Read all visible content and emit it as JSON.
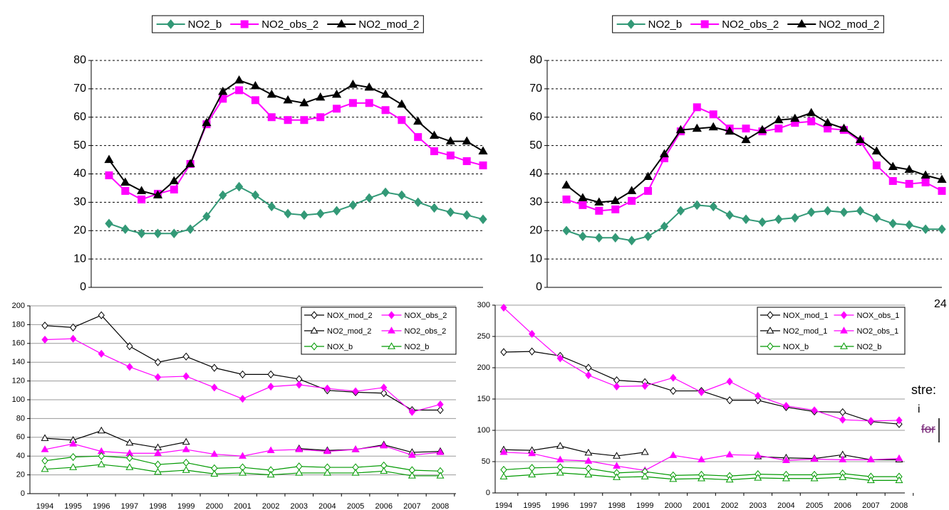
{
  "chart_data": [
    {
      "type": "line",
      "legend": "top",
      "grid": true,
      "grid_style": "dashed",
      "ylim": [
        0,
        80
      ],
      "yticks": [
        0,
        10,
        20,
        30,
        40,
        50,
        60,
        70,
        80
      ],
      "series": [
        {
          "name": "NO2_b",
          "color": "#339977",
          "marker": "diamond",
          "marker_fill": "filled",
          "values": [
            22.5,
            20.5,
            19,
            19,
            19,
            20.5,
            25,
            32.5,
            35.5,
            32.5,
            28.5,
            26,
            25.5,
            26,
            27,
            29,
            31.5,
            33.5,
            32.5,
            30,
            28,
            26.5,
            25.5,
            24
          ]
        },
        {
          "name": "NO2_obs_2",
          "color": "#ff00ff",
          "marker": "square",
          "marker_fill": "filled",
          "values": [
            39.5,
            34,
            31,
            33,
            34.5,
            43.5,
            57.5,
            66.5,
            69.5,
            66,
            60,
            59,
            59,
            60,
            63,
            65,
            65,
            62.5,
            59,
            53,
            48,
            46.5,
            44.5,
            43
          ]
        },
        {
          "name": "NO2_mod_2",
          "color": "#000000",
          "marker": "triangle",
          "marker_fill": "filled",
          "values": [
            45,
            37,
            34,
            32.5,
            37.5,
            43.5,
            58,
            69,
            73,
            71,
            68,
            66,
            65,
            67,
            68,
            71.5,
            70.5,
            68,
            64.5,
            58.5,
            53.5,
            51.5,
            51.5,
            48
          ]
        }
      ]
    },
    {
      "type": "line",
      "legend": "top",
      "grid": true,
      "grid_style": "dashed",
      "ylim": [
        0,
        80
      ],
      "yticks": [
        0,
        10,
        20,
        30,
        40,
        50,
        60,
        70,
        80
      ],
      "series": [
        {
          "name": "NO2_b",
          "color": "#339977",
          "marker": "diamond",
          "marker_fill": "filled",
          "values": [
            20,
            18,
            17.5,
            17.5,
            16.5,
            18,
            21.5,
            27,
            29,
            28.5,
            25.5,
            24,
            23,
            24,
            24.5,
            26.5,
            27,
            26.5,
            27,
            24.5,
            22.5,
            22,
            20.5,
            20.5
          ]
        },
        {
          "name": "NO2_obs_2",
          "color": "#ff00ff",
          "marker": "square",
          "marker_fill": "filled",
          "values": [
            31,
            29,
            27,
            27.5,
            30.5,
            34,
            45.5,
            55,
            63.5,
            61,
            56,
            56,
            55,
            56,
            58,
            58.5,
            56,
            55.5,
            51.5,
            43,
            37.5,
            36.5,
            37,
            34
          ]
        },
        {
          "name": "NO2_mod_2",
          "color": "#000000",
          "marker": "triangle",
          "marker_fill": "filled",
          "values": [
            36,
            31.5,
            30,
            30.5,
            34,
            39,
            47,
            55.5,
            56,
            56.5,
            55,
            52,
            55.5,
            59,
            59.5,
            61.5,
            58,
            56,
            52,
            48,
            42.5,
            41.5,
            39.5,
            38
          ]
        }
      ]
    },
    {
      "type": "line",
      "legend": "upper right",
      "grid": true,
      "grid_style": "solid",
      "ylim": [
        0,
        200
      ],
      "yticks": [
        0,
        20,
        40,
        60,
        80,
        100,
        120,
        140,
        160,
        180,
        200
      ],
      "categories": [
        "1994",
        "1995",
        "1996",
        "1997",
        "1998",
        "1999",
        "2000",
        "2001",
        "2002",
        "2003",
        "2004",
        "2005",
        "2006",
        "2007",
        "2008"
      ],
      "series": [
        {
          "name": "NOX_mod_2",
          "color": "#000000",
          "marker": "diamond",
          "marker_fill": "open",
          "values": [
            179,
            177,
            190,
            157,
            140,
            146,
            134,
            127,
            127,
            122,
            110,
            108,
            107,
            89,
            89
          ]
        },
        {
          "name": "NOX_obs_2",
          "color": "#ff00ff",
          "marker": "diamond",
          "marker_fill": "filled",
          "values": [
            164,
            165,
            149,
            135,
            124,
            125,
            113,
            101,
            114,
            116,
            112,
            109,
            113,
            87,
            95
          ]
        },
        {
          "name": "NO2_mod_2",
          "color": "#000000",
          "marker": "triangle",
          "marker_fill": "open",
          "values": [
            59,
            57,
            67,
            54,
            49,
            55,
            null,
            null,
            null,
            48,
            46,
            47,
            52,
            44,
            45
          ]
        },
        {
          "name": "NO2_obs_2",
          "color": "#ff00ff",
          "marker": "triangle",
          "marker_fill": "filled",
          "values": [
            47,
            53,
            45,
            43,
            43,
            47,
            42,
            40,
            46,
            47,
            45,
            47,
            51,
            41,
            44
          ]
        },
        {
          "name": "NOX_b",
          "color": "#009900",
          "marker": "diamond",
          "marker_fill": "open",
          "values": [
            35,
            39,
            40,
            38,
            31,
            33,
            27,
            28,
            25,
            29,
            28,
            28,
            30,
            25,
            24
          ]
        },
        {
          "name": "NO2_b",
          "color": "#009900",
          "marker": "triangle",
          "marker_fill": "open",
          "values": [
            26,
            28,
            31,
            28,
            23,
            25,
            21,
            22,
            20,
            22,
            22,
            22,
            24,
            19,
            19
          ]
        }
      ]
    },
    {
      "type": "line",
      "legend": "upper right",
      "grid": true,
      "grid_style": "solid",
      "ylim": [
        0,
        300
      ],
      "yticks": [
        0,
        50,
        100,
        150,
        200,
        250,
        300
      ],
      "categories": [
        "1994",
        "1995",
        "1996",
        "1997",
        "1998",
        "1999",
        "2000",
        "2001",
        "2002",
        "2003",
        "2004",
        "2005",
        "2006",
        "2007",
        "2008"
      ],
      "series": [
        {
          "name": "NOX_mod_1",
          "color": "#000000",
          "marker": "diamond",
          "marker_fill": "open",
          "values": [
            225,
            226,
            219,
            200,
            180,
            177,
            163,
            163,
            148,
            148,
            137,
            130,
            129,
            114,
            110
          ]
        },
        {
          "name": "NOX_obs_1",
          "color": "#ff00ff",
          "marker": "diamond",
          "marker_fill": "filled",
          "values": [
            296,
            254,
            215,
            188,
            170,
            171,
            184,
            161,
            178,
            155,
            139,
            132,
            117,
            115,
            116
          ]
        },
        {
          "name": "NO2_mod_1",
          "color": "#000000",
          "marker": "triangle",
          "marker_fill": "open",
          "values": [
            69,
            68,
            75,
            64,
            59,
            65,
            null,
            null,
            null,
            58,
            56,
            55,
            61,
            53,
            53
          ]
        },
        {
          "name": "NO2_obs_1",
          "color": "#ff00ff",
          "marker": "triangle",
          "marker_fill": "filled",
          "values": [
            65,
            63,
            53,
            51,
            43,
            36,
            60,
            53,
            61,
            60,
            52,
            54,
            53,
            53,
            55
          ]
        },
        {
          "name": "NOX_b",
          "color": "#009900",
          "marker": "diamond",
          "marker_fill": "open",
          "values": [
            37,
            40,
            41,
            39,
            32,
            34,
            28,
            29,
            27,
            30,
            29,
            29,
            31,
            26,
            26
          ]
        },
        {
          "name": "NO2_b",
          "color": "#009900",
          "marker": "triangle",
          "marker_fill": "open",
          "values": [
            26,
            29,
            32,
            29,
            25,
            26,
            22,
            23,
            21,
            24,
            23,
            23,
            25,
            20,
            20
          ]
        }
      ]
    }
  ],
  "fragments": [
    "24",
    "stre:",
    "i",
    "for"
  ]
}
